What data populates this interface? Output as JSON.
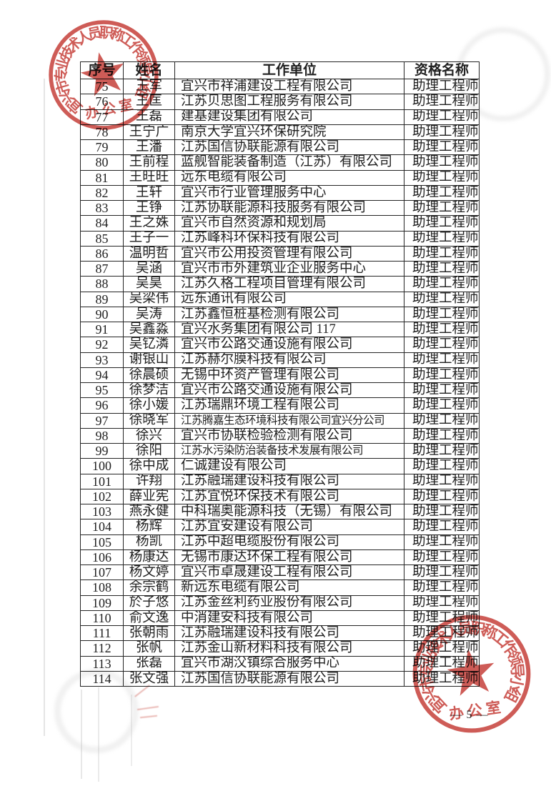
{
  "document": {
    "page_number": "— 5 —"
  },
  "table": {
    "headers": {
      "no": "序号",
      "name": "姓名",
      "company": "工作单位",
      "title": "资格名称"
    },
    "rows": [
      {
        "no": "75",
        "name": "王军",
        "company": "宜兴市祥浦建设工程有限公司",
        "title": "助理工程师"
      },
      {
        "no": "76",
        "name": "王匡",
        "company": "江苏贝思图工程服务有限公司",
        "title": "助理工程师"
      },
      {
        "no": "77",
        "name": "王磊",
        "company": "建基建设集团有限公司",
        "title": "助理工程师"
      },
      {
        "no": "78",
        "name": "王宁广",
        "company": "南京大学宜兴环保研究院",
        "title": "助理工程师"
      },
      {
        "no": "79",
        "name": "王潘",
        "company": "江苏国信协联能源有限公司",
        "title": "助理工程师"
      },
      {
        "no": "80",
        "name": "王前程",
        "company": "蓝舰智能装备制造（江苏）有限公司",
        "title": "助理工程师"
      },
      {
        "no": "81",
        "name": "王旺旺",
        "company": "远东电缆有限公司",
        "title": "助理工程师"
      },
      {
        "no": "82",
        "name": "王轩",
        "company": "宜兴市行业管理服务中心",
        "title": "助理工程师"
      },
      {
        "no": "83",
        "name": "王铮",
        "company": "江苏协联能源科技服务有限公司",
        "title": "助理工程师"
      },
      {
        "no": "84",
        "name": "王之姝",
        "company": "宜兴市自然资源和规划局",
        "title": "助理工程师"
      },
      {
        "no": "85",
        "name": "王子一",
        "company": "江苏峰科环保科技有限公司",
        "title": "助理工程师"
      },
      {
        "no": "86",
        "name": "温明哲",
        "company": "宜兴市公用投资管理有限公司",
        "title": "助理工程师"
      },
      {
        "no": "87",
        "name": "吴涵",
        "company": "宜兴市市外建筑业企业服务中心",
        "title": "助理工程师"
      },
      {
        "no": "88",
        "name": "吴昊",
        "company": "江苏久格工程项目管理有限公司",
        "title": "助理工程师"
      },
      {
        "no": "89",
        "name": "吴梁伟",
        "company": "远东通讯有限公司",
        "title": "助理工程师"
      },
      {
        "no": "90",
        "name": "吴涛",
        "company": "江苏鑫恒桩基检测有限公司",
        "title": "助理工程师"
      },
      {
        "no": "91",
        "name": "吴鑫淼",
        "company": "宜兴水务集团有限公司 117",
        "title": "助理工程师"
      },
      {
        "no": "92",
        "name": "吴钇潾",
        "company": "宜兴市公路交通设施有限公司",
        "title": "助理工程师"
      },
      {
        "no": "93",
        "name": "谢银山",
        "company": "江苏赫尔膜科技有限公司",
        "title": "助理工程师"
      },
      {
        "no": "94",
        "name": "徐晨硕",
        "company": "无锡中环资产管理有限公司",
        "title": "助理工程师"
      },
      {
        "no": "95",
        "name": "徐梦洁",
        "company": "宜兴市公路交通设施有限公司",
        "title": "助理工程师"
      },
      {
        "no": "96",
        "name": "徐小媛",
        "company": "江苏瑞鼎环境工程有限公司",
        "title": "助理工程师"
      },
      {
        "no": "97",
        "name": "徐晓军",
        "company": "江苏腾嘉生态环境科技有限公司宜兴分公司",
        "title": "助理工程师"
      },
      {
        "no": "98",
        "name": "徐兴",
        "company": "宜兴市协联检验检测有限公司",
        "title": "助理工程师"
      },
      {
        "no": "99",
        "name": "徐阳",
        "company": "江苏水污染防治装备技术发展有限公司",
        "title": "助理工程师"
      },
      {
        "no": "100",
        "name": "徐中成",
        "company": "仁诚建设有限公司",
        "title": "助理工程师"
      },
      {
        "no": "101",
        "name": "许翔",
        "company": "江苏融瑞建设科技有限公司",
        "title": "助理工程师"
      },
      {
        "no": "102",
        "name": "薛业宪",
        "company": "江苏宜悦环保技术有限公司",
        "title": "助理工程师"
      },
      {
        "no": "103",
        "name": "燕永健",
        "company": "中科瑞奥能源科技（无锡）有限公司",
        "title": "助理工程师"
      },
      {
        "no": "104",
        "name": "杨辉",
        "company": "江苏宜安建设有限公司",
        "title": "助理工程师"
      },
      {
        "no": "105",
        "name": "杨凯",
        "company": "江苏中超电缆股份有限公司",
        "title": "助理工程师"
      },
      {
        "no": "106",
        "name": "杨康达",
        "company": "无锡市康达环保工程有限公司",
        "title": "助理工程师"
      },
      {
        "no": "107",
        "name": "杨文婷",
        "company": "宜兴市卓晟建设工程有限公司",
        "title": "助理工程师"
      },
      {
        "no": "108",
        "name": "余宗鹤",
        "company": "新远东电缆有限公司",
        "title": "助理工程师"
      },
      {
        "no": "109",
        "name": "於子悠",
        "company": "江苏金丝利药业股份有限公司",
        "title": "助理工程师"
      },
      {
        "no": "110",
        "name": "俞文逸",
        "company": "中消建安科技有限公司",
        "title": "助理工程师"
      },
      {
        "no": "111",
        "name": "张朝雨",
        "company": "江苏融瑞建设科技有限公司",
        "title": "助理工程师"
      },
      {
        "no": "112",
        "name": "张帆",
        "company": "江苏金山新材料科技有限公司",
        "title": "助理工程师"
      },
      {
        "no": "113",
        "name": "张磊",
        "company": "宜兴市湖㳇镇综合服务中心",
        "title": "助理工程师"
      },
      {
        "no": "114",
        "name": "张文强",
        "company": "江苏国信协联能源有限公司",
        "title": "助理工程师"
      }
    ]
  },
  "seal": {
    "ring_text": "宜兴市专业技术人员职称工作领导小组",
    "office_label": "办公室",
    "color": "#c8453f"
  }
}
